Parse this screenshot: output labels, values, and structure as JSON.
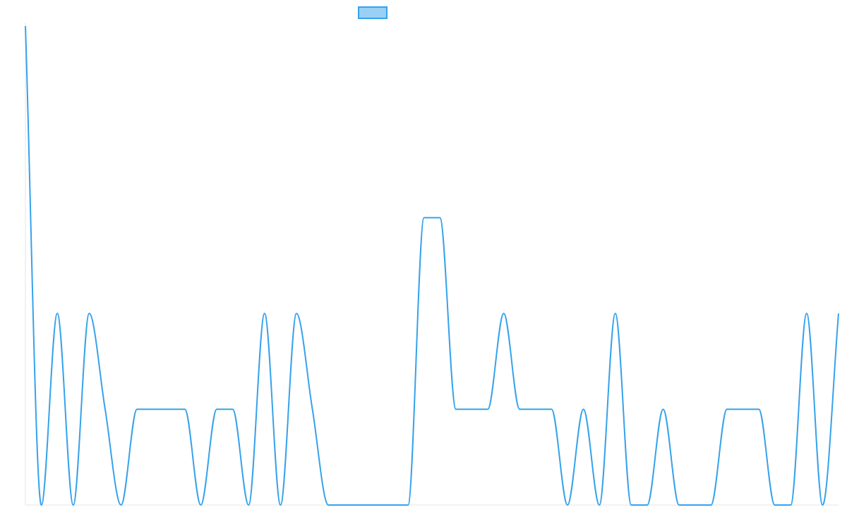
{
  "chart_data": {
    "type": "line",
    "title": "",
    "xlabel": "",
    "ylabel": "",
    "ylim": [
      0,
      5
    ],
    "grid": false,
    "legend": "top-center",
    "colors": {
      "line": "#36a2eb",
      "legend_fill": "#9ad0f5",
      "axis": "#e6e6e6"
    },
    "series": [
      {
        "name": "",
        "values": [
          5,
          0,
          2,
          0,
          2,
          1,
          0,
          1,
          1,
          1,
          1,
          0,
          1,
          1,
          0,
          2,
          0,
          2,
          1,
          0,
          0,
          0,
          0,
          0,
          0,
          3,
          3,
          1,
          1,
          1,
          2,
          1,
          1,
          1,
          0,
          1,
          0,
          2,
          0,
          0,
          1,
          0,
          0,
          0,
          1,
          1,
          1,
          0,
          0,
          2,
          0,
          2
        ]
      }
    ]
  }
}
